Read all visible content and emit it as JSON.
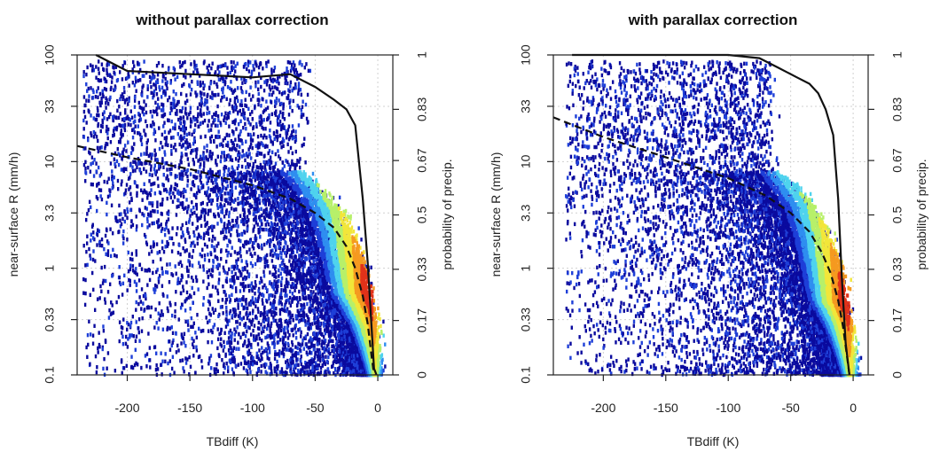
{
  "chart_data": [
    {
      "type": "scatter",
      "title": "without parallax correction",
      "xlabel": "TBdiff (K)",
      "ylabel": "near-surface R (mm/h)",
      "y2label": "probability of precip.",
      "xlim": [
        -240,
        12
      ],
      "ylim": [
        0.1,
        100
      ],
      "yscale": "log",
      "y2lim": [
        0,
        1
      ],
      "grid": true,
      "x_ticks": [
        "-200",
        "-150",
        "-100",
        "-50",
        "0"
      ],
      "y_ticks": [
        "0.1",
        "0.33",
        "1",
        "3.3",
        "10",
        "33",
        "100"
      ],
      "y2_ticks": [
        "0",
        "0.17",
        "0.33",
        "0.5",
        "0.67",
        "0.83",
        "1"
      ],
      "colormap": [
        "#0a0a9e",
        "#1e3fd8",
        "#2f8ef0",
        "#4fd3ee",
        "#b7f06a",
        "#f2e63a",
        "#f59a20",
        "#e0321a"
      ],
      "density_cloud": {
        "ridge": [
          [
            -2,
            0.1
          ],
          [
            -4,
            0.3
          ],
          [
            -8,
            0.6
          ],
          [
            -12,
            1.0
          ],
          [
            -20,
            2.0
          ],
          [
            -30,
            3.5
          ],
          [
            -45,
            5.5
          ],
          [
            -60,
            8.0
          ]
        ],
        "core": [
          -15,
          0.6
        ],
        "sparse_x_range": [
          -235,
          10
        ]
      },
      "series": [
        {
          "style": "solid",
          "axis": "right",
          "points": [
            [
              -225,
              1.0
            ],
            [
              -200,
              0.95
            ],
            [
              -150,
              0.94
            ],
            [
              -100,
              0.93
            ],
            [
              -70,
              0.94
            ],
            [
              -50,
              0.9
            ],
            [
              -35,
              0.86
            ],
            [
              -25,
              0.83
            ],
            [
              -18,
              0.78
            ],
            [
              -12,
              0.55
            ],
            [
              -8,
              0.35
            ],
            [
              -5,
              0.15
            ],
            [
              -3,
              0.02
            ],
            [
              -1,
              0.0
            ]
          ]
        },
        {
          "style": "dashed",
          "axis": "left",
          "points": [
            [
              -240,
              14
            ],
            [
              -200,
              11
            ],
            [
              -150,
              8.5
            ],
            [
              -100,
              6.0
            ],
            [
              -70,
              4.5
            ],
            [
              -50,
              3.3
            ],
            [
              -35,
              2.4
            ],
            [
              -25,
              1.6
            ],
            [
              -18,
              1.0
            ],
            [
              -12,
              0.55
            ],
            [
              -8,
              0.3
            ],
            [
              -5,
              0.15
            ],
            [
              -3,
              0.1
            ]
          ]
        }
      ]
    },
    {
      "type": "scatter",
      "title": "with parallax correction",
      "xlabel": "TBdiff (K)",
      "ylabel": "near-surface R (mm/h)",
      "y2label": "probability of precip.",
      "xlim": [
        -240,
        12
      ],
      "ylim": [
        0.1,
        100
      ],
      "yscale": "log",
      "y2lim": [
        0,
        1
      ],
      "grid": true,
      "x_ticks": [
        "-200",
        "-150",
        "-100",
        "-50",
        "0"
      ],
      "y_ticks": [
        "0.1",
        "0.33",
        "1",
        "3.3",
        "10",
        "33",
        "100"
      ],
      "y2_ticks": [
        "0",
        "0.17",
        "0.33",
        "0.5",
        "0.67",
        "0.83",
        "1"
      ],
      "colormap": [
        "#0a0a9e",
        "#1e3fd8",
        "#2f8ef0",
        "#4fd3ee",
        "#b7f06a",
        "#f2e63a",
        "#f59a20",
        "#e0321a"
      ],
      "density_cloud": {
        "ridge": [
          [
            -2,
            0.1
          ],
          [
            -4,
            0.3
          ],
          [
            -8,
            0.6
          ],
          [
            -12,
            1.0
          ],
          [
            -20,
            2.0
          ],
          [
            -32,
            3.8
          ],
          [
            -48,
            6.0
          ],
          [
            -65,
            9.0
          ]
        ],
        "core": [
          -12,
          0.5
        ],
        "sparse_x_range": [
          -230,
          8
        ]
      },
      "series": [
        {
          "style": "solid",
          "axis": "right",
          "points": [
            [
              -225,
              1.0
            ],
            [
              -150,
              1.0
            ],
            [
              -100,
              1.0
            ],
            [
              -75,
              0.99
            ],
            [
              -60,
              0.96
            ],
            [
              -45,
              0.93
            ],
            [
              -35,
              0.91
            ],
            [
              -28,
              0.88
            ],
            [
              -22,
              0.83
            ],
            [
              -16,
              0.75
            ],
            [
              -12,
              0.55
            ],
            [
              -9,
              0.3
            ],
            [
              -6,
              0.1
            ],
            [
              -3,
              0.0
            ]
          ]
        },
        {
          "style": "dashed",
          "axis": "left",
          "points": [
            [
              -240,
              26
            ],
            [
              -200,
              17
            ],
            [
              -150,
              11
            ],
            [
              -100,
              7.0
            ],
            [
              -70,
              4.8
            ],
            [
              -50,
              3.3
            ],
            [
              -35,
              2.2
            ],
            [
              -25,
              1.4
            ],
            [
              -18,
              0.9
            ],
            [
              -12,
              0.5
            ],
            [
              -8,
              0.28
            ],
            [
              -5,
              0.15
            ],
            [
              -3,
              0.1
            ]
          ]
        }
      ]
    }
  ]
}
